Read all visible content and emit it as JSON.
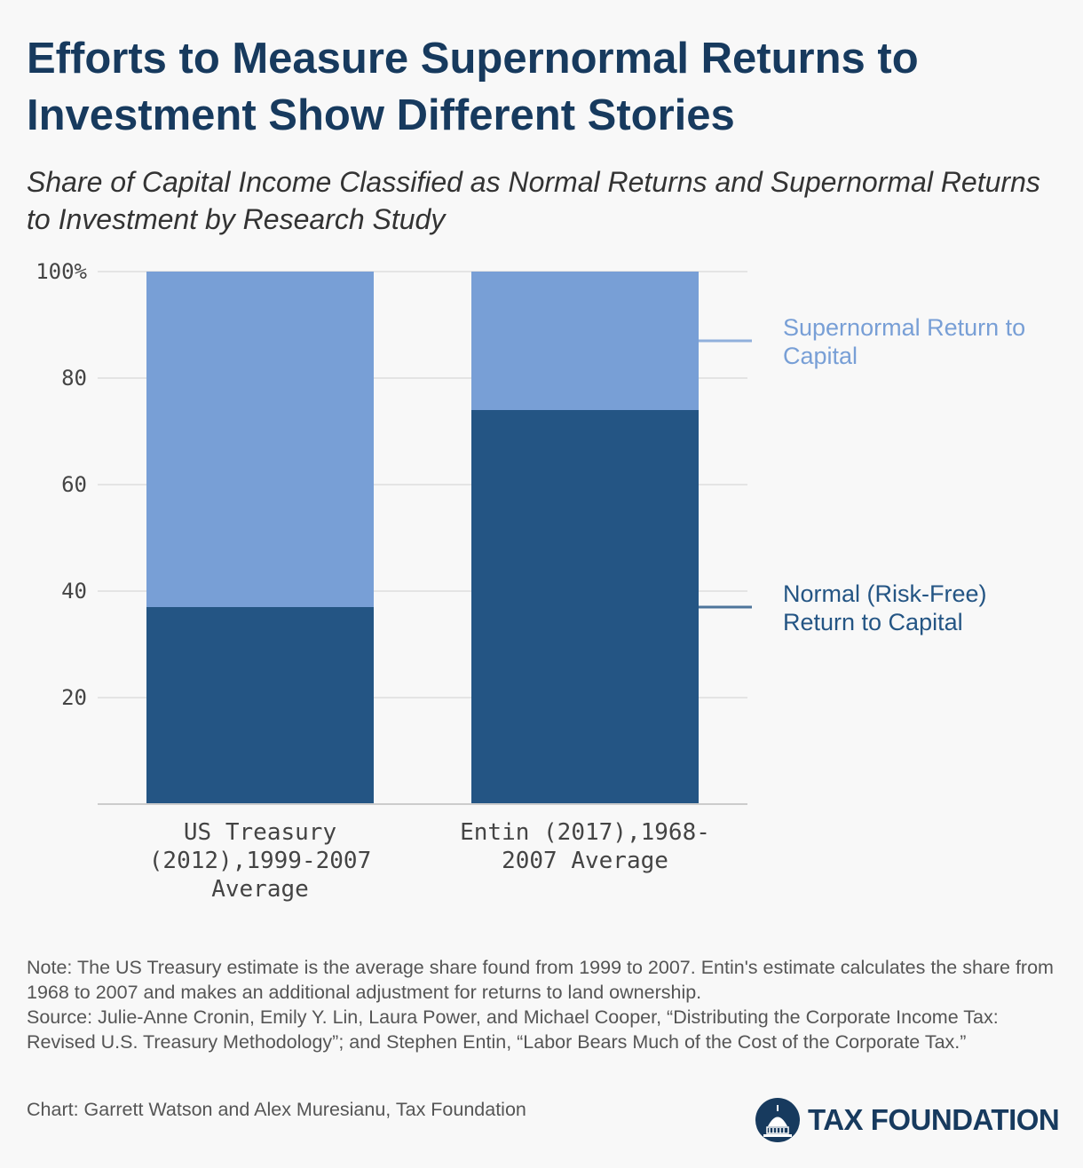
{
  "title": "Efforts to Measure Supernormal Returns to Investment Show Different Stories",
  "subtitle": "Share of Capital Income Classified as Normal Returns and Supernormal Returns to Investment by Research Study",
  "chart_data": {
    "type": "bar",
    "stacked": true,
    "categories": [
      [
        "US Treasury",
        "(2012),1999-2007",
        "Average"
      ],
      [
        "Entin (2017),1968-",
        "2007 Average"
      ]
    ],
    "series": [
      {
        "name": "Normal (Risk-Free) Return to Capital",
        "name_lines": [
          "Normal (Risk-Free)",
          "Return to Capital"
        ],
        "values": [
          37,
          74
        ],
        "color": "#245584"
      },
      {
        "name": "Supernormal Return to Capital",
        "name_lines": [
          "Supernormal Return to",
          "Capital"
        ],
        "values": [
          63,
          26
        ],
        "color": "#789fd6"
      }
    ],
    "ylim": [
      0,
      100
    ],
    "yticks": [
      20,
      40,
      60,
      80,
      100
    ],
    "ytick_labels": [
      "20",
      "40",
      "60",
      "80",
      "100%"
    ],
    "grid": true,
    "legend": "right, direct labels"
  },
  "footer": {
    "note": "Note: The US Treasury estimate is the average share found from 1999 to 2007. Entin's estimate calculates the share from 1968 to 2007 and makes an additional adjustment for returns to land ownership.",
    "source": "Source: Julie-Anne Cronin, Emily Y. Lin, Laura Power, and Michael Cooper, “Distributing the Corporate Income Tax: Revised U.S. Treasury Methodology”; and Stephen Entin, “Labor Bears Much of the Cost of the Corporate Tax.”",
    "credit": "Chart: Garrett Watson and Alex Muresianu, Tax Foundation"
  },
  "logo": {
    "text": "TAX FOUNDATION",
    "icon": "capitol-dome-icon",
    "color": "#173a5e"
  }
}
